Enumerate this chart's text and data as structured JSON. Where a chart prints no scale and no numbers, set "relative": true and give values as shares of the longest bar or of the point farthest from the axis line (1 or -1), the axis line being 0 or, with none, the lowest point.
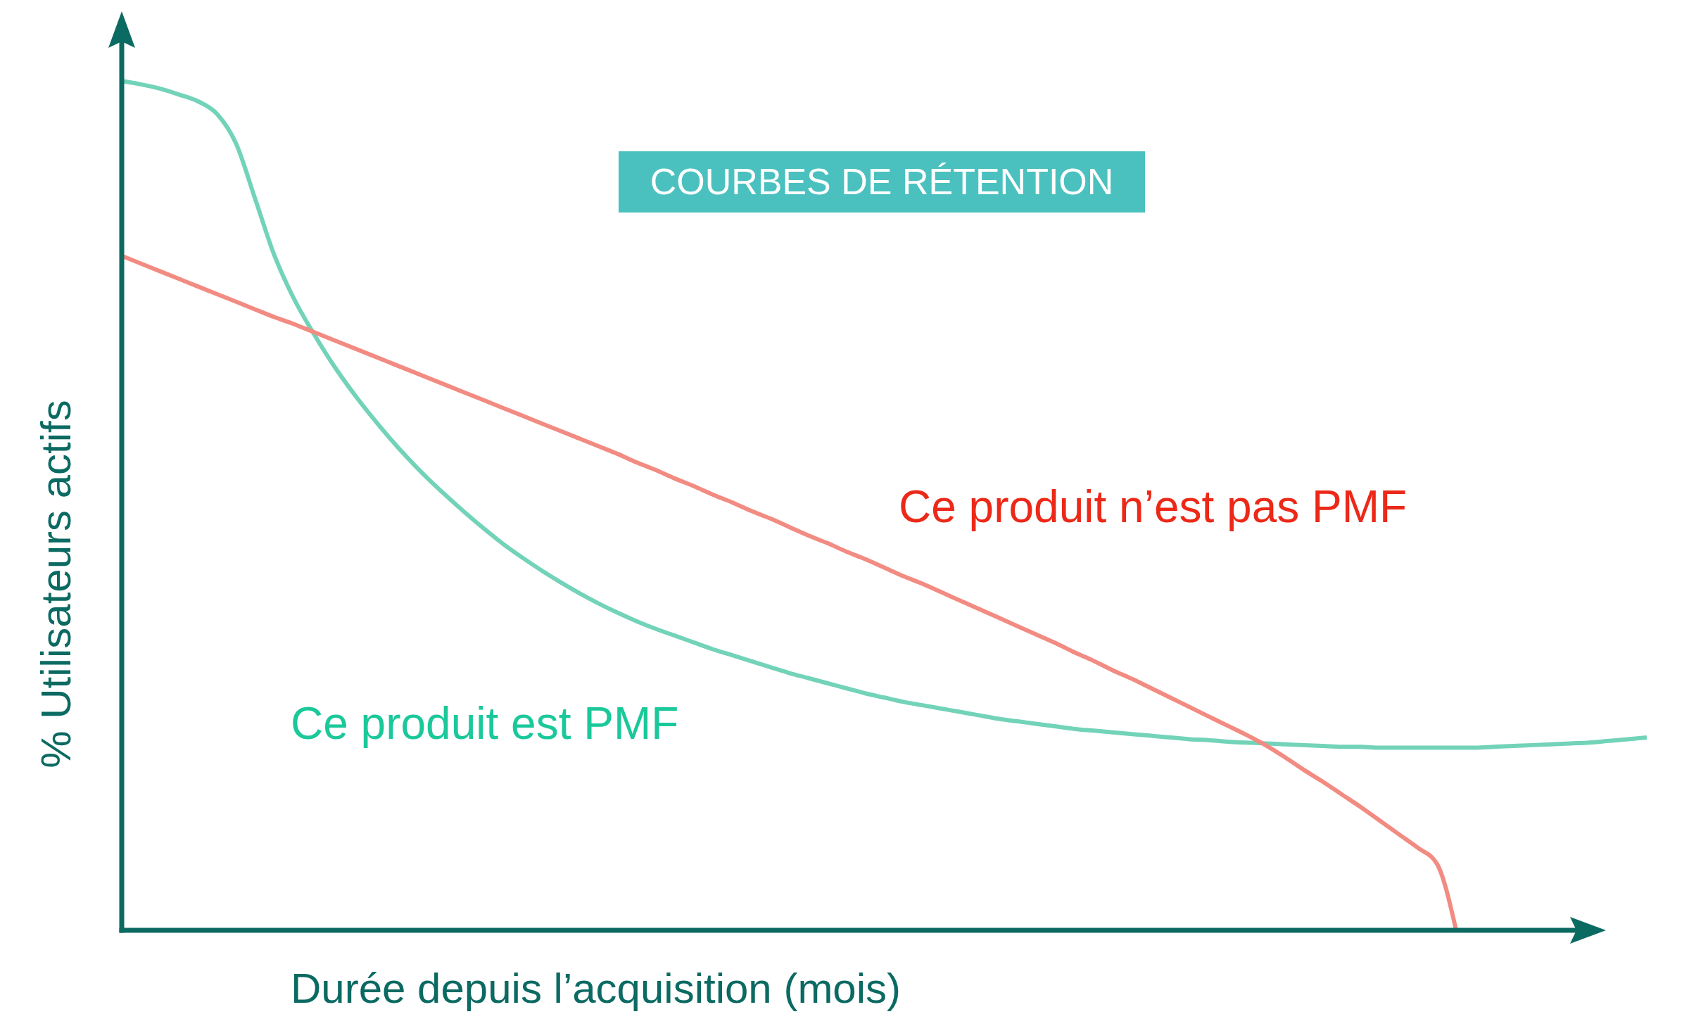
{
  "chart_data": {
    "type": "line",
    "title": "COURBES DE RÉTENTION",
    "xlabel": "Durée depuis l’acquisition (mois)",
    "ylabel": "% Utilisateurs actifs",
    "relative": true,
    "categories": [
      null,
      null,
      null,
      null,
      null,
      null,
      null,
      null,
      null,
      null,
      null,
      null,
      null,
      null,
      null,
      null,
      null,
      null,
      null,
      null,
      null,
      null,
      null,
      null,
      null,
      null,
      null,
      null,
      null,
      null,
      null,
      null,
      null,
      null,
      null,
      null,
      null,
      null,
      null,
      null,
      null,
      null,
      null,
      null,
      null,
      null,
      null,
      null,
      null,
      null,
      null,
      null,
      null,
      null,
      null,
      null,
      null,
      null,
      null,
      null,
      null,
      null,
      null,
      null,
      null,
      null,
      null,
      null,
      null,
      null,
      null,
      null,
      null,
      null,
      null,
      null,
      null,
      null,
      null,
      null,
      null
    ],
    "series": [
      {
        "name": "Ce produit est PMF",
        "color": "#72d3b9",
        "values": [
          1.0,
          0.996,
          0.991,
          0.984,
          0.976,
          0.961,
          0.926,
          0.861,
          0.795,
          0.745,
          0.705,
          0.669,
          0.637,
          0.608,
          0.581,
          0.556,
          0.533,
          0.512,
          0.492,
          0.473,
          0.455,
          0.439,
          0.424,
          0.41,
          0.397,
          0.385,
          0.374,
          0.364,
          0.355,
          0.347,
          0.339,
          0.331,
          0.324,
          0.317,
          0.31,
          0.303,
          0.297,
          0.291,
          0.285,
          0.279,
          0.274,
          0.269,
          0.265,
          0.261,
          0.257,
          0.253,
          0.249,
          0.246,
          0.243,
          0.24,
          0.237,
          0.235,
          0.233,
          0.231,
          0.229,
          0.227,
          0.225,
          0.224,
          0.222,
          0.221,
          0.22,
          0.219,
          0.218,
          0.217,
          0.216,
          0.216,
          0.215,
          0.215,
          0.215,
          0.215,
          0.215,
          0.215,
          0.216,
          0.217,
          0.218,
          0.219,
          0.22,
          0.221,
          0.223,
          0.225,
          0.227
        ]
      },
      {
        "name": "Ce produit n’est pas PMF",
        "color": "#f28b82",
        "values": [
          0.794,
          0.785,
          0.776,
          0.767,
          0.758,
          0.749,
          0.74,
          0.731,
          0.722,
          0.714,
          0.705,
          0.696,
          0.687,
          0.678,
          0.669,
          0.66,
          0.651,
          0.642,
          0.633,
          0.624,
          0.615,
          0.606,
          0.597,
          0.588,
          0.579,
          0.57,
          0.561,
          0.551,
          0.542,
          0.532,
          0.523,
          0.513,
          0.504,
          0.494,
          0.485,
          0.475,
          0.465,
          0.456,
          0.446,
          0.437,
          0.427,
          0.417,
          0.408,
          0.398,
          0.388,
          0.378,
          0.368,
          0.358,
          0.348,
          0.338,
          0.327,
          0.317,
          0.306,
          0.296,
          0.285,
          0.274,
          0.263,
          0.252,
          0.241,
          0.23,
          0.218,
          0.204,
          0.189,
          0.175,
          0.16,
          0.145,
          0.129,
          0.113,
          0.097,
          0.078,
          0,
          null,
          null,
          null,
          null,
          null,
          null,
          null,
          null,
          null,
          null
        ]
      }
    ]
  }
}
